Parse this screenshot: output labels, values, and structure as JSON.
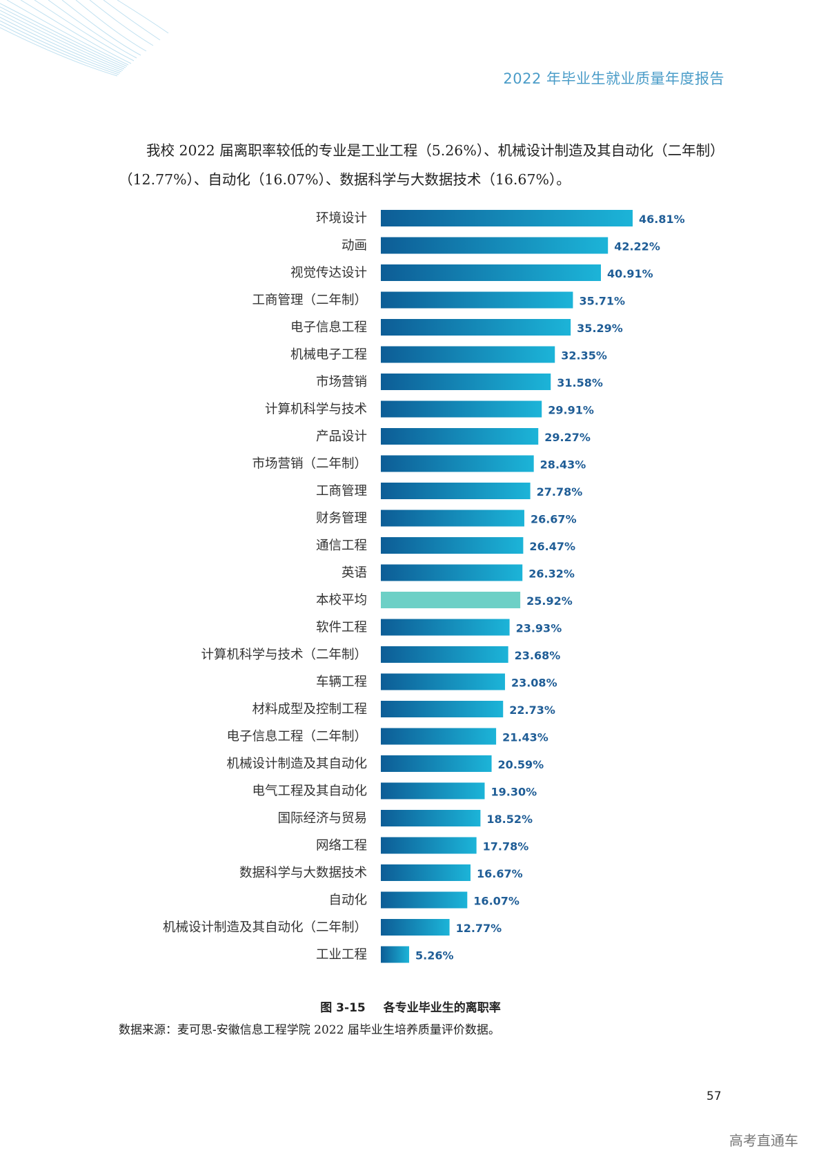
{
  "header": {
    "title": "2022 年毕业生就业质量年度报告"
  },
  "intro": {
    "text": "我校 2022 届离职率较低的专业是工业工程（5.26%）、机械设计制造及其自动化（二年制）（12.77%）、自动化（16.07%）、数据科学与大数据技术（16.67%）。"
  },
  "chart_data": {
    "type": "bar",
    "orientation": "horizontal",
    "title": "各专业毕业生的离职率",
    "categories": [
      "环境设计",
      "动画",
      "视觉传达设计",
      "工商管理（二年制）",
      "电子信息工程",
      "机械电子工程",
      "市场营销",
      "计算机科学与技术",
      "产品设计",
      "市场营销（二年制）",
      "工商管理",
      "财务管理",
      "通信工程",
      "英语",
      "本校平均",
      "软件工程",
      "计算机科学与技术（二年制）",
      "车辆工程",
      "材料成型及控制工程",
      "电子信息工程（二年制）",
      "机械设计制造及其自动化",
      "电气工程及其自动化",
      "国际经济与贸易",
      "网络工程",
      "数据科学与大数据技术",
      "自动化",
      "机械设计制造及其自动化（二年制）",
      "工业工程"
    ],
    "values": [
      46.81,
      42.22,
      40.91,
      35.71,
      35.29,
      32.35,
      31.58,
      29.91,
      29.27,
      28.43,
      27.78,
      26.67,
      26.47,
      26.32,
      25.92,
      23.93,
      23.68,
      23.08,
      22.73,
      21.43,
      20.59,
      19.3,
      18.52,
      17.78,
      16.67,
      16.07,
      12.77,
      5.26
    ],
    "value_labels": [
      "46.81%",
      "42.22%",
      "40.91%",
      "35.71%",
      "35.29%",
      "32.35%",
      "31.58%",
      "29.91%",
      "29.27%",
      "28.43%",
      "27.78%",
      "26.67%",
      "26.47%",
      "26.32%",
      "25.92%",
      "23.93%",
      "23.68%",
      "23.08%",
      "22.73%",
      "21.43%",
      "20.59%",
      "19.30%",
      "18.52%",
      "17.78%",
      "16.67%",
      "16.07%",
      "12.77%",
      "5.26%"
    ],
    "highlight_category": "本校平均",
    "xlim": [
      0,
      46.81
    ],
    "colors": {
      "gradient_start": "#0d5d96",
      "gradient_end": "#1cb4d8",
      "highlight": "#6dd0c6",
      "value_text": "#1f5d96"
    }
  },
  "caption": {
    "figure_number": "图 3-15",
    "title": "各专业毕业生的离职率"
  },
  "source": {
    "text": "数据来源：麦可思-安徽信息工程学院 2022 届毕业生培养质量评价数据。"
  },
  "page": {
    "number": "57"
  },
  "watermark": {
    "text": "高考直通车"
  }
}
